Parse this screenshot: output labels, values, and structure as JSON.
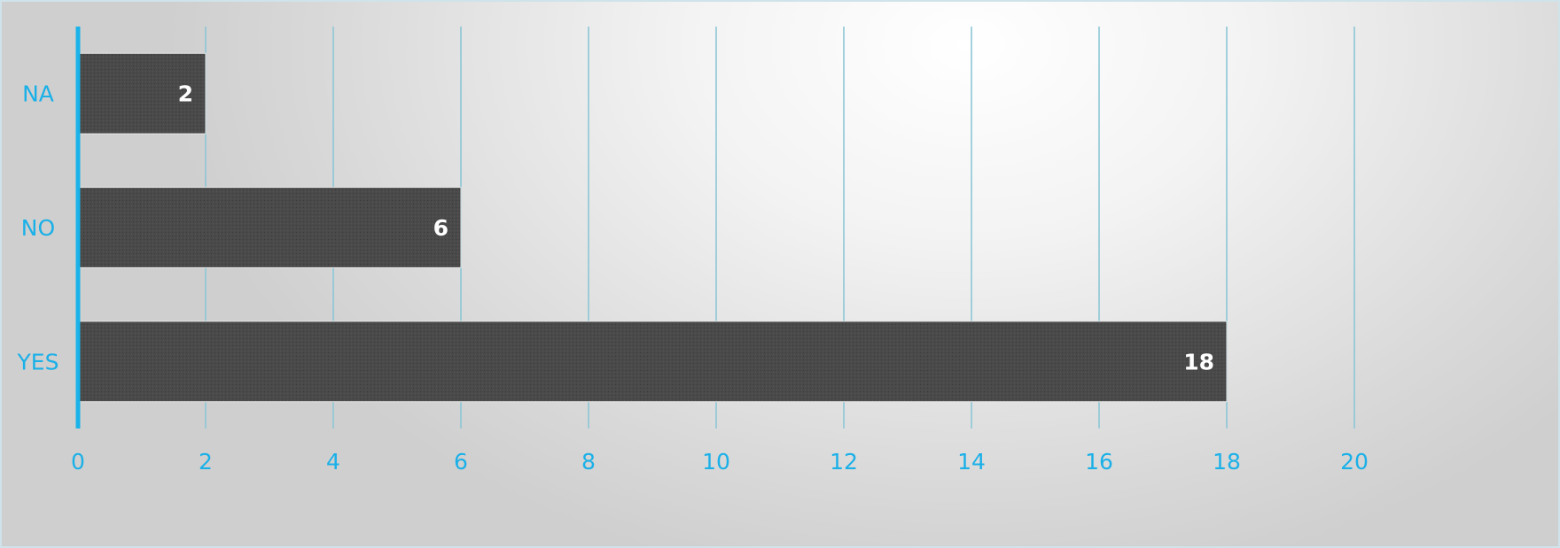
{
  "chart_data": {
    "type": "bar",
    "orientation": "horizontal",
    "categories": [
      "YES",
      "NO",
      "NA"
    ],
    "values": [
      18,
      6,
      2
    ],
    "data_labels": [
      "18",
      "6",
      "2"
    ],
    "x_ticks": [
      "0",
      "2",
      "4",
      "6",
      "8",
      "10",
      "12",
      "14",
      "16",
      "18",
      "20"
    ],
    "xlim": [
      0,
      20
    ],
    "title": "",
    "xlabel": "",
    "ylabel": "",
    "grid": "vertical",
    "legend": "none",
    "colors": {
      "bar": "#4a4a4a",
      "axis_text": "#1ab0e8",
      "grid": "#8cc7d6",
      "axis_line": "#19b3ea",
      "data_label": "#ffffff"
    }
  }
}
